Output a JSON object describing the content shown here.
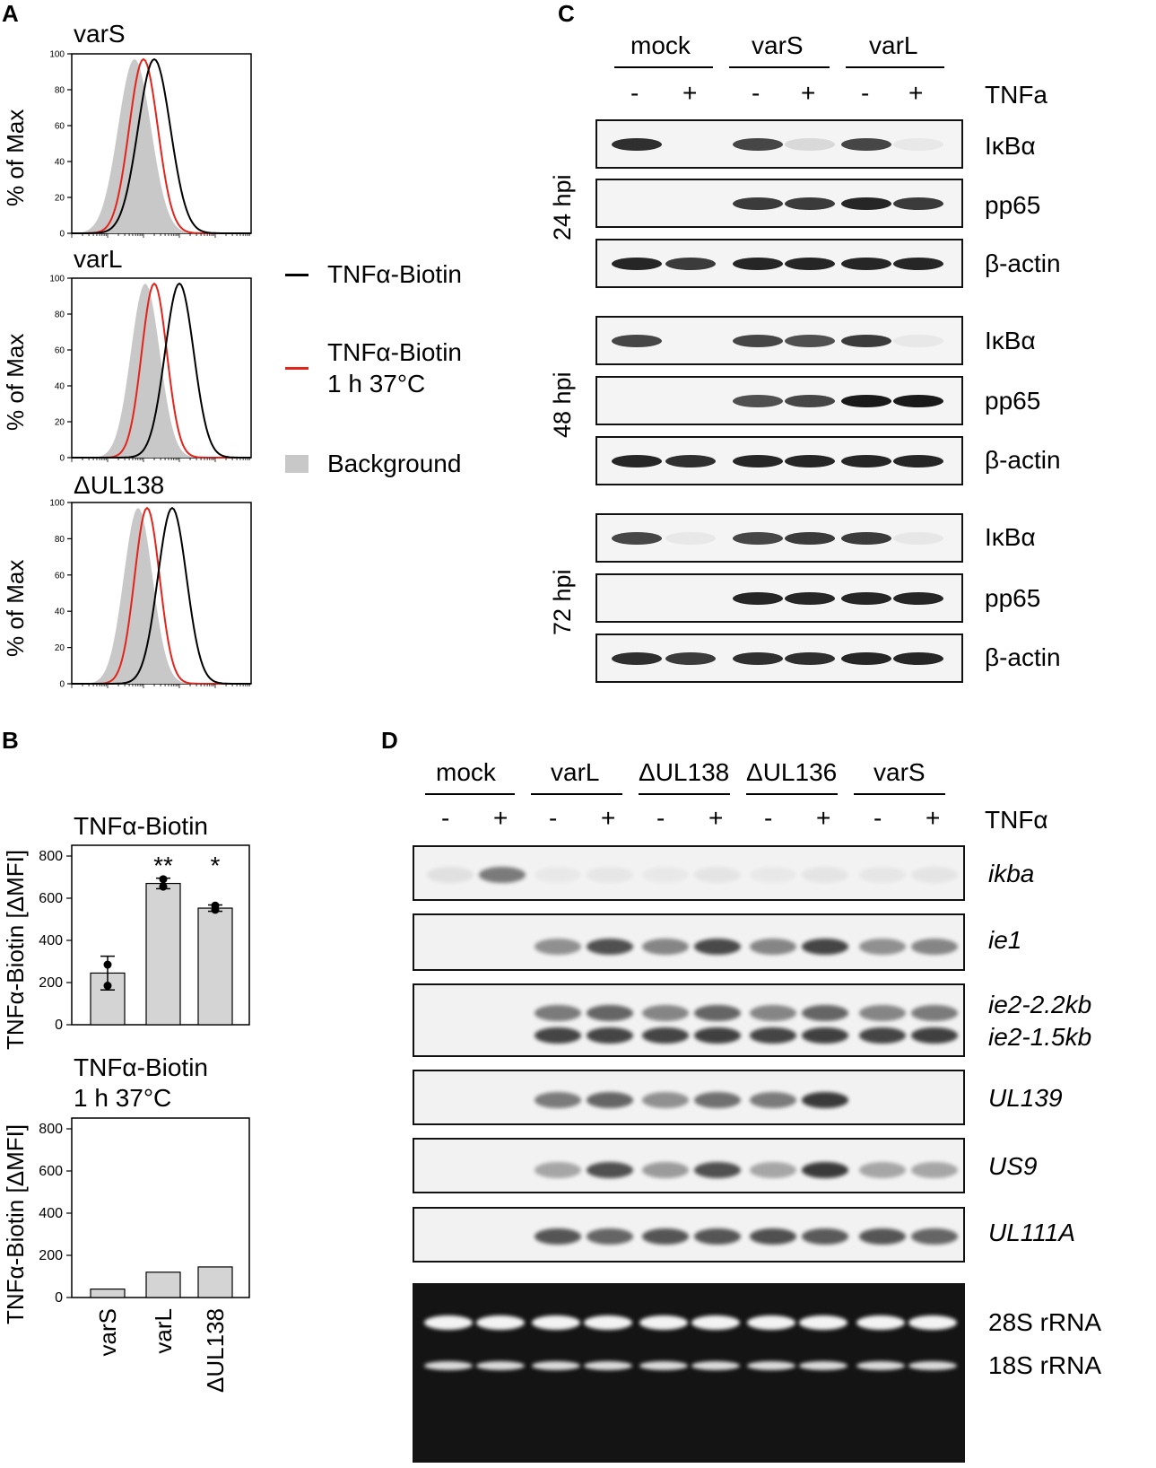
{
  "panel_labels": {
    "a": "A",
    "b": "B",
    "c": "C",
    "d": "D"
  },
  "panel_a": {
    "ylabel": "% of Max",
    "yticks": [
      "0",
      "20",
      "40",
      "60",
      "80",
      "100"
    ],
    "plots": [
      {
        "title": "varS"
      },
      {
        "title": "varL"
      },
      {
        "title": "ΔUL138"
      }
    ],
    "legend": [
      {
        "label": "TNFα-Biotin",
        "color": "#000000"
      },
      {
        "label_line1": "TNFα-Biotin",
        "label_line2": "1 h 37°C",
        "color": "#e3241c"
      },
      {
        "label": "Background",
        "color": "#c8c8c8"
      }
    ]
  },
  "chart_data": [
    {
      "type": "bar",
      "title": "TNFα-Biotin",
      "ylabel": "TNFα-Biotin [ΔMFI]",
      "categories": [
        "varS",
        "varL",
        "ΔUL138"
      ],
      "values": [
        245,
        670,
        553
      ],
      "errors": [
        80,
        25,
        15
      ],
      "points": [
        [
          285,
          185
        ],
        [
          690,
          655
        ],
        [
          565,
          545
        ]
      ],
      "significance": [
        "",
        "**",
        "*"
      ],
      "ylim": [
        0,
        800
      ],
      "yticks": [
        "0",
        "200",
        "400",
        "600",
        "800"
      ]
    },
    {
      "type": "bar",
      "title_line1": "TNFα-Biotin",
      "title_line2": "1 h 37°C",
      "ylabel": "TNFα-Biotin [ΔMFI]",
      "categories": [
        "varS",
        "varL",
        "ΔUL138"
      ],
      "values": [
        40,
        120,
        145
      ],
      "ylim": [
        0,
        800
      ],
      "yticks": [
        "0",
        "200",
        "400",
        "600",
        "800"
      ]
    }
  ],
  "panel_c": {
    "groups": [
      "mock",
      "varS",
      "varL"
    ],
    "treatment_label": "TNFa",
    "signs": [
      "-",
      "+",
      "-",
      "+",
      "-",
      "+"
    ],
    "timepoints": [
      "24 hpi",
      "48 hpi",
      "72 hpi"
    ],
    "proteins": [
      "IκBα",
      "pp65",
      "β-actin"
    ]
  },
  "panel_d": {
    "groups": [
      "mock",
      "varL",
      "ΔUL138",
      "ΔUL136",
      "varS"
    ],
    "treatment_label": "TNFα",
    "signs": [
      "-",
      "+",
      "-",
      "+",
      "-",
      "+",
      "-",
      "+",
      "-",
      "+"
    ],
    "transcripts": [
      "ikba",
      "ie1",
      "ie2-2.2kb",
      "ie2-1.5kb",
      "UL139",
      "US9",
      "UL111A"
    ],
    "rrna": [
      "28S rRNA",
      "18S rRNA"
    ]
  }
}
